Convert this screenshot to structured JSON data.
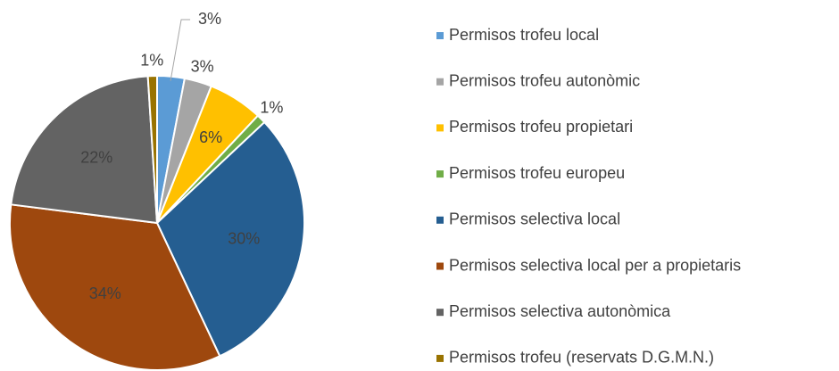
{
  "chart_data": {
    "type": "pie",
    "categories": [
      "Permisos trofeu local",
      "Permisos trofeu autonòmic",
      "Permisos trofeu propietari",
      "Permisos trofeu europeu",
      "Permisos selectiva local",
      "Permisos selectiva local per a propietaris",
      "Permisos selectiva autonòmica",
      "Permisos trofeu (reservats D.G.M.N.)"
    ],
    "values": [
      3,
      3,
      6,
      1,
      30,
      34,
      22,
      1
    ],
    "value_labels": [
      "3%",
      "3%",
      "6%",
      "1%",
      "30%",
      "34%",
      "22%",
      "1%"
    ],
    "colors": [
      "#5b9bd5",
      "#a5a5a5",
      "#ffc000",
      "#70ad47",
      "#255e91",
      "#9e480e",
      "#636363",
      "#997300"
    ],
    "legend": "right"
  }
}
